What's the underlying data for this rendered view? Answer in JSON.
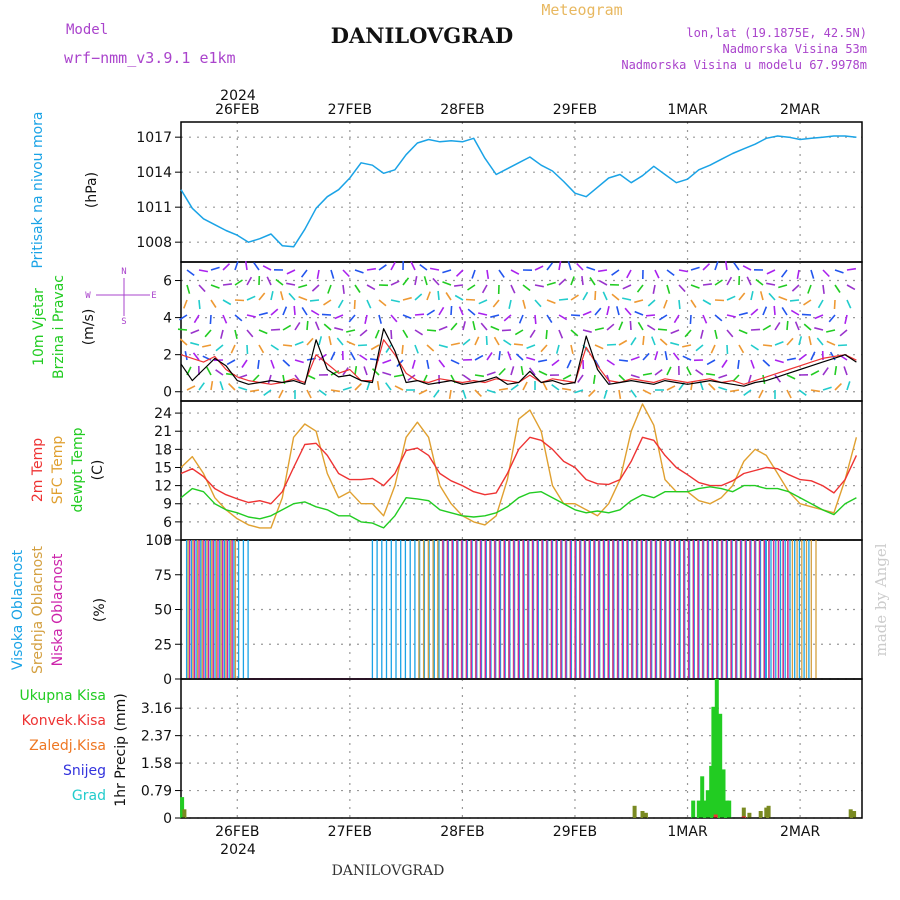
{
  "header": {
    "model_label": "Model",
    "model_name": "wrf−nmm_v3.9.1  e1km",
    "location": "DANILOVGRAD",
    "meteogram_label": "Meteogram",
    "coords": "lon,lat (19.1875E, 42.5N)",
    "elevation": "Nadmorska Visina 53m",
    "model_elevation": "Nadmorska Visina u modelu 67.9978m",
    "footer_location": "DANILOVGRAD",
    "watermark": "made by Angel"
  },
  "colors": {
    "pressure": "#1aa3e6",
    "wind_label": "#22cc22",
    "wind_speed": "#000000",
    "wind_gust": "#ee3333",
    "temp_2m": "#ee3333",
    "temp_sfc": "#e0a030",
    "dewpoint": "#22cc22",
    "cloud_high": "#1aa3e6",
    "cloud_mid": "#d4a040",
    "cloud_low": "#cc22aa",
    "precip_total": "#22cc22",
    "precip_conv": "#ee3333",
    "precip_frozen": "#ee7722",
    "precip_snow": "#3333dd",
    "precip_hail": "#22cccc",
    "accent_purple": "#aa44cc",
    "meteogram_orange": "#e8b860",
    "watermark": "#cccccc"
  },
  "time_axis": {
    "top_year": "2024",
    "bottom_year": "2024",
    "dates": [
      "26FEB",
      "27FEB",
      "28FEB",
      "29FEB",
      "1MAR",
      "2MAR"
    ]
  },
  "panels": {
    "pressure": {
      "label_left": "Pritisak na nivou mora",
      "unit": "(hPa)"
    },
    "wind": {
      "label_left_1": "10m Vjetar",
      "label_left_2": "Brzina i Pravac",
      "unit": "(m/s)",
      "compass_n": "N",
      "compass_e": "E",
      "compass_w": "W",
      "compass_s": "S"
    },
    "temp": {
      "label_2m": "2m Temp",
      "label_sfc": "SFC Temp",
      "label_dewpt": "dewpt Temp",
      "unit": "(C)"
    },
    "cloud": {
      "label_high": "Visoka Oblacnost",
      "label_mid": "Srednja Oblacnost",
      "label_low": "Niska Oblacnost",
      "unit": "(%)"
    },
    "precip": {
      "unit_label": "1hr Precip (mm)",
      "legend": [
        "Ukupna Kisa",
        "Konvek.Kisa",
        "Zaledj.Kisa",
        "Snijeg",
        "Grad"
      ]
    }
  },
  "chart_data": [
    {
      "type": "line",
      "title": "",
      "ylabel": "(hPa)",
      "ylim": [
        1006.3,
        1018.3
      ],
      "yticks": [
        1008,
        1011,
        1014,
        1017
      ],
      "grid": true,
      "x_unit": "days since 26FEB 00UTC",
      "series": [
        {
          "name": "Pritisak na nivou mora",
          "x": [
            -0.5,
            -0.4,
            -0.3,
            -0.2,
            -0.1,
            0,
            0.1,
            0.2,
            0.3,
            0.4,
            0.5,
            0.6,
            0.7,
            0.8,
            0.9,
            1.0,
            1.1,
            1.2,
            1.3,
            1.4,
            1.5,
            1.6,
            1.7,
            1.8,
            1.9,
            2.0,
            2.1,
            2.2,
            2.3,
            2.4,
            2.5,
            2.6,
            2.7,
            2.8,
            2.9,
            3.0,
            3.1,
            3.2,
            3.3,
            3.4,
            3.5,
            3.6,
            3.7,
            3.8,
            3.9,
            4.0,
            4.1,
            4.2,
            4.3,
            4.4,
            4.5,
            4.6,
            4.7,
            4.8,
            4.9,
            5.0,
            5.1,
            5.2,
            5.3,
            5.4,
            5.5
          ],
          "values": [
            1012.5,
            1010.9,
            1010.0,
            1009.5,
            1009.0,
            1008.6,
            1008.0,
            1008.3,
            1008.7,
            1007.7,
            1007.6,
            1009.1,
            1010.9,
            1011.9,
            1012.5,
            1013.5,
            1014.8,
            1014.6,
            1013.9,
            1014.2,
            1015.5,
            1016.5,
            1016.8,
            1016.6,
            1016.7,
            1016.6,
            1016.9,
            1015.2,
            1013.8,
            1014.3,
            1014.8,
            1015.3,
            1014.6,
            1014.1,
            1013.2,
            1012.2,
            1011.9,
            1012.7,
            1013.5,
            1013.8,
            1013.1,
            1013.7,
            1014.5,
            1013.8,
            1013.1,
            1013.4,
            1014.2,
            1014.6,
            1015.1,
            1015.6,
            1016.0,
            1016.4,
            1016.9,
            1017.1,
            1017.0,
            1016.8,
            1016.9,
            1017.0,
            1017.1,
            1017.1,
            1017.0
          ]
        }
      ]
    },
    {
      "type": "line",
      "title": "",
      "ylabel": "(m/s)",
      "ylim": [
        -0.5,
        7.0
      ],
      "yticks": [
        0,
        2,
        4,
        6
      ],
      "grid": true,
      "x_unit": "days since 26FEB 00UTC",
      "series": [
        {
          "name": "speed",
          "x": [
            -0.5,
            -0.4,
            -0.3,
            -0.2,
            -0.1,
            0,
            0.1,
            0.2,
            0.3,
            0.4,
            0.5,
            0.6,
            0.7,
            0.8,
            0.9,
            1.0,
            1.1,
            1.2,
            1.3,
            1.4,
            1.5,
            1.6,
            1.7,
            1.8,
            1.9,
            2.0,
            2.1,
            2.2,
            2.3,
            2.4,
            2.5,
            2.6,
            2.7,
            2.8,
            2.9,
            3.0,
            3.1,
            3.2,
            3.3,
            3.4,
            3.5,
            3.6,
            3.7,
            3.8,
            3.9,
            4.0,
            4.1,
            4.2,
            4.3,
            4.4,
            4.5,
            4.6,
            4.7,
            4.8,
            4.9,
            5.0,
            5.1,
            5.2,
            5.3,
            5.4,
            5.5
          ],
          "values": [
            1.5,
            0.6,
            1.2,
            1.8,
            1.4,
            0.6,
            0.4,
            0.5,
            0.6,
            0.5,
            0.6,
            0.4,
            2.8,
            1.2,
            0.8,
            0.9,
            0.6,
            0.5,
            3.4,
            2.2,
            0.5,
            0.6,
            0.4,
            0.5,
            0.6,
            0.4,
            0.5,
            0.6,
            0.8,
            0.4,
            0.5,
            1.1,
            0.5,
            0.6,
            0.4,
            0.5,
            3.0,
            1.2,
            0.4,
            0.5,
            0.6,
            0.5,
            0.4,
            0.6,
            0.5,
            0.4,
            0.5,
            0.6,
            0.5,
            0.4,
            0.3,
            0.5,
            0.6,
            0.8,
            1.0,
            1.2,
            1.4,
            1.6,
            1.8,
            2.0,
            1.6
          ]
        },
        {
          "name": "gust",
          "x": [
            -0.5,
            -0.4,
            -0.3,
            -0.2,
            -0.1,
            0,
            0.1,
            0.2,
            0.3,
            0.4,
            0.5,
            0.6,
            0.7,
            0.8,
            0.9,
            1.0,
            1.1,
            1.2,
            1.3,
            1.4,
            1.5,
            1.6,
            1.7,
            1.8,
            1.9,
            2.0,
            2.1,
            2.2,
            2.3,
            2.4,
            2.5,
            2.6,
            2.7,
            2.8,
            2.9,
            3.0,
            3.1,
            3.2,
            3.3,
            3.4,
            3.5,
            3.6,
            3.7,
            3.8,
            3.9,
            4.0,
            4.1,
            4.2,
            4.3,
            4.4,
            4.5,
            4.6,
            4.7,
            4.8,
            4.9,
            5.0,
            5.1,
            5.2,
            5.3,
            5.4,
            5.5
          ],
          "values": [
            2.0,
            1.8,
            1.6,
            1.9,
            1.2,
            0.8,
            0.6,
            0.5,
            0.4,
            0.5,
            0.7,
            0.5,
            2.0,
            1.5,
            1.0,
            1.2,
            0.6,
            0.6,
            2.8,
            2.0,
            1.0,
            0.6,
            0.5,
            0.7,
            0.6,
            0.5,
            0.6,
            0.5,
            0.7,
            0.6,
            0.5,
            0.9,
            0.5,
            0.7,
            0.6,
            0.5,
            2.4,
            1.4,
            0.6,
            0.5,
            0.7,
            0.6,
            0.5,
            0.7,
            0.6,
            0.5,
            0.6,
            0.7,
            0.5,
            0.6,
            0.4,
            0.6,
            0.8,
            1.0,
            1.2,
            1.4,
            1.6,
            1.8,
            1.9,
            2.0,
            1.7
          ]
        }
      ]
    },
    {
      "type": "line",
      "title": "",
      "ylabel": "(C)",
      "ylim": [
        3,
        26
      ],
      "yticks": [
        3,
        6,
        9,
        12,
        15,
        18,
        21,
        24
      ],
      "grid": true,
      "x_unit": "days since 26FEB 00UTC",
      "series": [
        {
          "name": "2m Temp",
          "x": [
            -0.5,
            -0.4,
            -0.3,
            -0.2,
            -0.1,
            0,
            0.1,
            0.2,
            0.3,
            0.4,
            0.5,
            0.6,
            0.7,
            0.8,
            0.9,
            1.0,
            1.1,
            1.2,
            1.3,
            1.4,
            1.5,
            1.6,
            1.7,
            1.8,
            1.9,
            2.0,
            2.1,
            2.2,
            2.3,
            2.4,
            2.5,
            2.6,
            2.7,
            2.8,
            2.9,
            3.0,
            3.1,
            3.2,
            3.3,
            3.4,
            3.5,
            3.6,
            3.7,
            3.8,
            3.9,
            4.0,
            4.1,
            4.2,
            4.3,
            4.4,
            4.5,
            4.6,
            4.7,
            4.8,
            4.9,
            5.0,
            5.1,
            5.2,
            5.3,
            5.4,
            5.5
          ],
          "values": [
            14,
            14.8,
            13.5,
            11.5,
            10.5,
            9.8,
            9.2,
            9.5,
            9.0,
            11,
            15,
            18.8,
            19,
            17,
            14,
            13,
            13,
            13.2,
            12,
            14,
            17.8,
            18.2,
            17,
            14,
            12.8,
            12,
            11,
            10.5,
            10.8,
            14,
            18,
            20,
            19.5,
            18,
            16,
            15,
            13,
            12.3,
            12.2,
            13,
            16,
            20,
            19.5,
            17,
            15,
            13.8,
            12.5,
            12,
            12,
            12.8,
            14,
            14.5,
            15,
            14.8,
            13.8,
            13,
            12.8,
            12,
            10.8,
            13,
            17
          ]
        },
        {
          "name": "SFC Temp",
          "x": [
            -0.5,
            -0.4,
            -0.3,
            -0.2,
            -0.1,
            0,
            0.1,
            0.2,
            0.3,
            0.4,
            0.5,
            0.6,
            0.7,
            0.8,
            0.9,
            1.0,
            1.1,
            1.2,
            1.3,
            1.4,
            1.5,
            1.6,
            1.7,
            1.8,
            1.9,
            2.0,
            2.1,
            2.2,
            2.3,
            2.4,
            2.5,
            2.6,
            2.7,
            2.8,
            2.9,
            3.0,
            3.1,
            3.2,
            3.3,
            3.4,
            3.5,
            3.6,
            3.7,
            3.8,
            3.9,
            4.0,
            4.1,
            4.2,
            4.3,
            4.4,
            4.5,
            4.6,
            4.7,
            4.8,
            4.9,
            5.0,
            5.1,
            5.2,
            5.3,
            5.4,
            5.5
          ],
          "values": [
            15,
            16.8,
            14,
            10,
            8,
            6.5,
            5.5,
            5,
            5,
            10,
            20,
            22.2,
            21,
            14,
            10,
            11,
            9,
            9,
            7,
            12,
            20,
            22.5,
            20,
            12,
            9,
            7,
            6,
            5.5,
            7,
            13,
            23,
            24.5,
            21,
            12,
            9,
            9,
            8,
            7,
            9,
            13,
            21,
            25.5,
            22,
            13,
            11,
            11,
            9.5,
            9,
            10,
            12,
            16,
            18,
            17,
            14,
            11,
            9,
            8.5,
            8,
            7.5,
            13,
            20
          ]
        },
        {
          "name": "dewpt Temp",
          "x": [
            -0.5,
            -0.4,
            -0.3,
            -0.2,
            -0.1,
            0,
            0.1,
            0.2,
            0.3,
            0.4,
            0.5,
            0.6,
            0.7,
            0.8,
            0.9,
            1.0,
            1.1,
            1.2,
            1.3,
            1.4,
            1.5,
            1.6,
            1.7,
            1.8,
            1.9,
            2.0,
            2.1,
            2.2,
            2.3,
            2.4,
            2.5,
            2.6,
            2.7,
            2.8,
            2.9,
            3.0,
            3.1,
            3.2,
            3.3,
            3.4,
            3.5,
            3.6,
            3.7,
            3.8,
            3.9,
            4.0,
            4.1,
            4.2,
            4.3,
            4.4,
            4.5,
            4.6,
            4.7,
            4.8,
            4.9,
            5.0,
            5.1,
            5.2,
            5.3,
            5.4,
            5.5
          ],
          "values": [
            10,
            11.5,
            11,
            9,
            8,
            7.5,
            6.8,
            6.5,
            7,
            8,
            9,
            9.3,
            8.5,
            8,
            7,
            7,
            6,
            5.8,
            5,
            7,
            10,
            9.8,
            9.5,
            8,
            7.5,
            7,
            6.8,
            7,
            7.5,
            8.5,
            10,
            10.8,
            11,
            10,
            9,
            8,
            7.5,
            7.8,
            7.5,
            8,
            9.5,
            10.5,
            10,
            11,
            11,
            11,
            11.5,
            11.8,
            11.5,
            11,
            12,
            12,
            11.5,
            11.5,
            11,
            10,
            9,
            8,
            7.2,
            9,
            10
          ]
        }
      ]
    },
    {
      "type": "bar",
      "title": "",
      "ylabel": "(%)",
      "ylim": [
        0,
        100
      ],
      "yticks": [
        0,
        25,
        50,
        75,
        100
      ],
      "grid": true,
      "x_unit": "days since 26FEB 00UTC",
      "segments": [
        {
          "name": "Visoka Oblacnost",
          "from": -0.45,
          "to": 0.1,
          "level": 100
        },
        {
          "name": "Visoka Oblacnost",
          "from": 1.2,
          "to": 1.75,
          "level": 100
        },
        {
          "name": "Visoka Oblacnost",
          "from": 1.75,
          "to": 4.7,
          "level": 100
        },
        {
          "name": "Visoka Oblacnost",
          "from": 4.7,
          "to": 5.1,
          "level": 100
        },
        {
          "name": "Srednja Oblacnost",
          "from": -0.45,
          "to": 0.0,
          "level": 100
        },
        {
          "name": "Srednja Oblacnost",
          "from": 1.6,
          "to": 5.15,
          "level": 100
        },
        {
          "name": "Niska Oblacnost",
          "from": -0.45,
          "to": -0.05,
          "level": 100
        },
        {
          "name": "Niska Oblacnost",
          "from": 1.8,
          "to": 4.9,
          "level": 100
        }
      ]
    },
    {
      "type": "bar",
      "title": "",
      "ylabel": "1hr Precip (mm)",
      "ylim": [
        0,
        4.0
      ],
      "yticks": [
        0,
        0.79,
        1.58,
        2.37,
        3.16
      ],
      "grid": true,
      "x_unit": "days since 26FEB 00UTC",
      "series": [
        {
          "name": "Ukupna Kisa",
          "x": [
            -0.49,
            -0.47,
            3.53,
            3.6,
            3.63,
            4.05,
            4.1,
            4.13,
            4.16,
            4.18,
            4.21,
            4.23,
            4.26,
            4.29,
            4.32,
            4.35,
            4.37,
            4.5,
            4.55,
            4.65,
            4.7,
            4.72,
            5.45,
            5.48
          ],
          "values": [
            0.6,
            0.25,
            0.35,
            0.2,
            0.15,
            0.5,
            0.5,
            1.2,
            0.5,
            0.8,
            1.5,
            3.2,
            4.0,
            3.0,
            1.4,
            0.5,
            0.5,
            0.3,
            0.15,
            0.2,
            0.3,
            0.35,
            0.25,
            0.2
          ]
        },
        {
          "name": "Konvek.Kisa",
          "x": [
            4.25,
            4.5
          ],
          "values": [
            0.1,
            0.05
          ]
        },
        {
          "name": "Zaledj.Kisa",
          "x": [],
          "values": []
        },
        {
          "name": "Snijeg",
          "x": [],
          "values": []
        },
        {
          "name": "Grad",
          "x": [],
          "values": []
        }
      ]
    }
  ]
}
